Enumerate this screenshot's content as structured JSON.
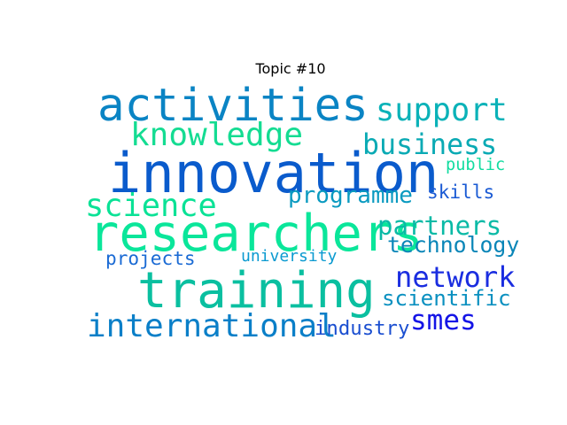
{
  "chart_data": {
    "type": "wordcloud",
    "title": "Topic #10",
    "words": [
      {
        "text": "innovation",
        "weight": 1.0,
        "color": "#0a5bcc"
      },
      {
        "text": "researchers",
        "weight": 0.92,
        "color": "#0ae69a"
      },
      {
        "text": "training",
        "weight": 0.9,
        "color": "#0abfa0"
      },
      {
        "text": "activities",
        "weight": 0.82,
        "color": "#0a84c4"
      },
      {
        "text": "international",
        "weight": 0.58,
        "color": "#0a7fc8"
      },
      {
        "text": "knowledge",
        "weight": 0.58,
        "color": "#14dc92"
      },
      {
        "text": "science",
        "weight": 0.57,
        "color": "#0ae296"
      },
      {
        "text": "support",
        "weight": 0.57,
        "color": "#0ab2b8"
      },
      {
        "text": "network",
        "weight": 0.52,
        "color": "#1a2de0"
      },
      {
        "text": "business",
        "weight": 0.51,
        "color": "#0aaab4"
      },
      {
        "text": "smes",
        "weight": 0.5,
        "color": "#1414e6"
      },
      {
        "text": "partners",
        "weight": 0.47,
        "color": "#0abaa6"
      },
      {
        "text": "programme",
        "weight": 0.42,
        "color": "#0a9ac0"
      },
      {
        "text": "technology",
        "weight": 0.4,
        "color": "#0a86b8"
      },
      {
        "text": "scientific",
        "weight": 0.39,
        "color": "#0a90c0"
      },
      {
        "text": "industry",
        "weight": 0.36,
        "color": "#1a4ed0"
      },
      {
        "text": "skills",
        "weight": 0.34,
        "color": "#1a5ad4"
      },
      {
        "text": "projects",
        "weight": 0.34,
        "color": "#1a6ad4"
      },
      {
        "text": "public",
        "weight": 0.3,
        "color": "#12dca0"
      },
      {
        "text": "university",
        "weight": 0.29,
        "color": "#0a9ad0"
      }
    ]
  }
}
